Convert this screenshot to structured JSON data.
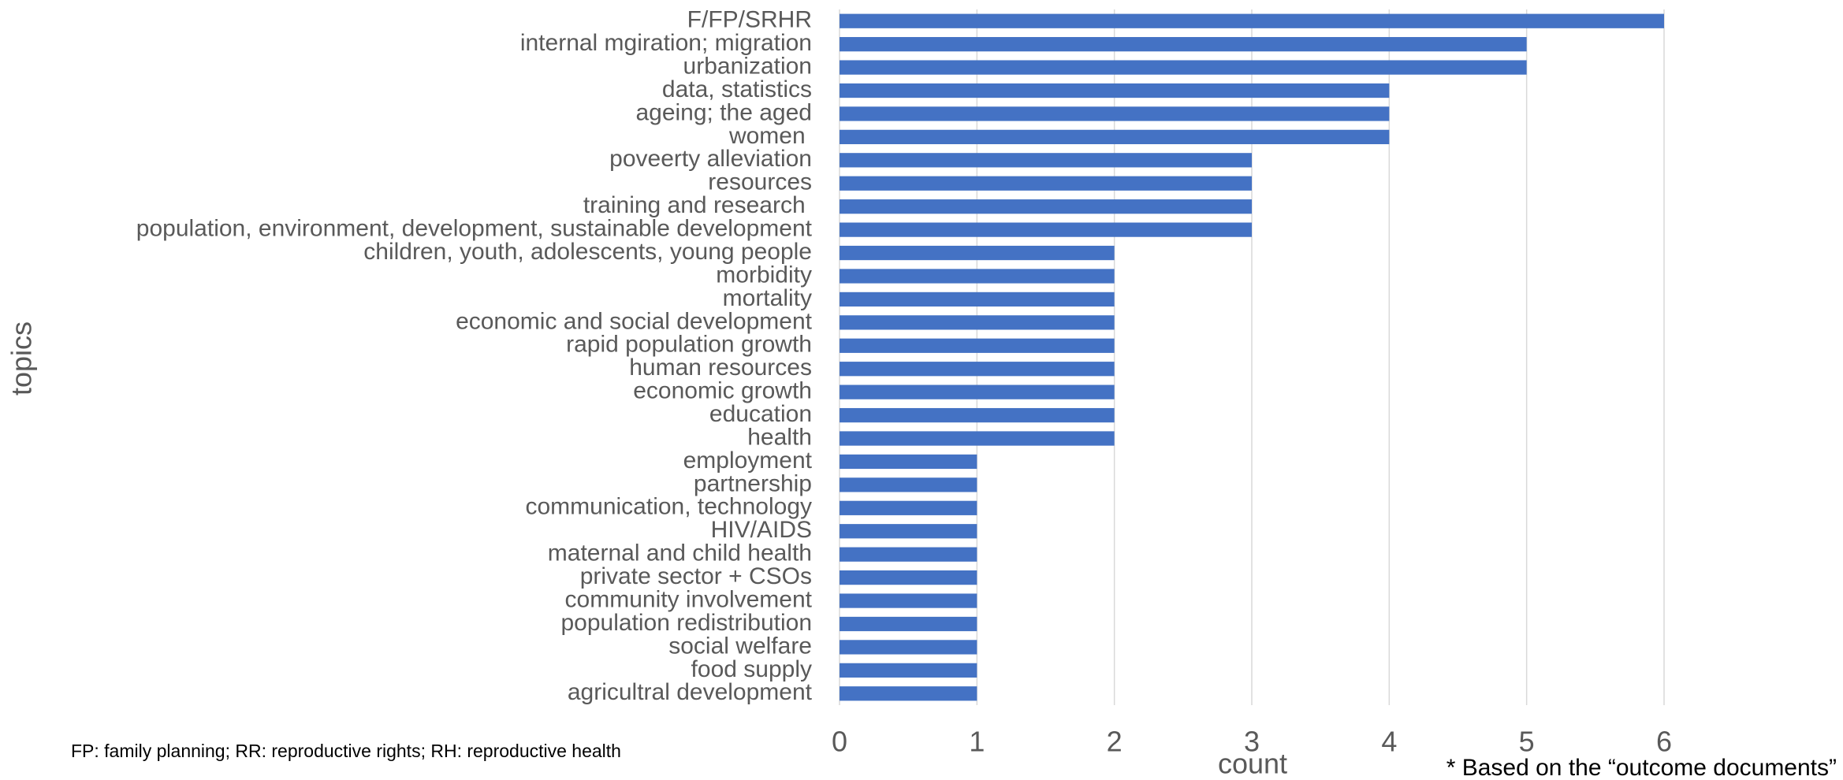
{
  "chart_data": {
    "type": "bar",
    "orientation": "horizontal",
    "categories": [
      "F/FP/SRHR",
      "internal mgiration; migration",
      "urbanization",
      "data, statistics",
      "ageing; the aged",
      "women ",
      "poveerty alleviation",
      "resources",
      "training and research ",
      "population, environment, development, sustainable development",
      "children, youth, adolescents, young people",
      "morbidity",
      "mortality",
      "economic and social development",
      "rapid population growth",
      "human resources",
      "economic growth",
      "education",
      "health",
      "employment",
      "partnership",
      "communication, technology",
      "HIV/AIDS",
      "maternal and child health",
      "private sector + CSOs",
      "community involvement",
      "population redistribution",
      "social welfare",
      "food supply",
      "agricultral development"
    ],
    "values": [
      6,
      5,
      5,
      4,
      4,
      4,
      3,
      3,
      3,
      3,
      2,
      2,
      2,
      2,
      2,
      2,
      2,
      2,
      2,
      1,
      1,
      1,
      1,
      1,
      1,
      1,
      1,
      1,
      1,
      1
    ],
    "color": "#4472c4",
    "xlim": [
      0,
      6
    ],
    "xticks": [
      0,
      1,
      2,
      3,
      4,
      5,
      6
    ],
    "grid": true,
    "xlabel": "count",
    "ylabel": "topics",
    "annotations": [
      "FP: family planning; RR: reproductive rights; RH: reproductive health",
      "* Based on the “outcome documents”"
    ]
  }
}
